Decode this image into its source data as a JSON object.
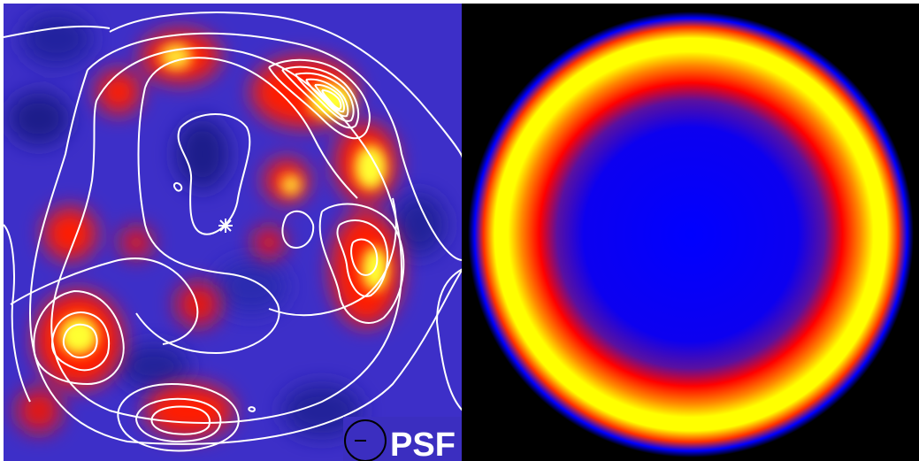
{
  "left_panel": {
    "psf_label": "PSF",
    "colors": {
      "background": "#3d2fc8",
      "red": "#ff1a00",
      "yellow": "#ffff30",
      "contour": "#ffffff"
    }
  },
  "right_panel": {
    "colors": {
      "background": "#000000",
      "center": "#0000ff",
      "ring_red": "#ff0000",
      "ring_yellow": "#ffff00"
    }
  }
}
